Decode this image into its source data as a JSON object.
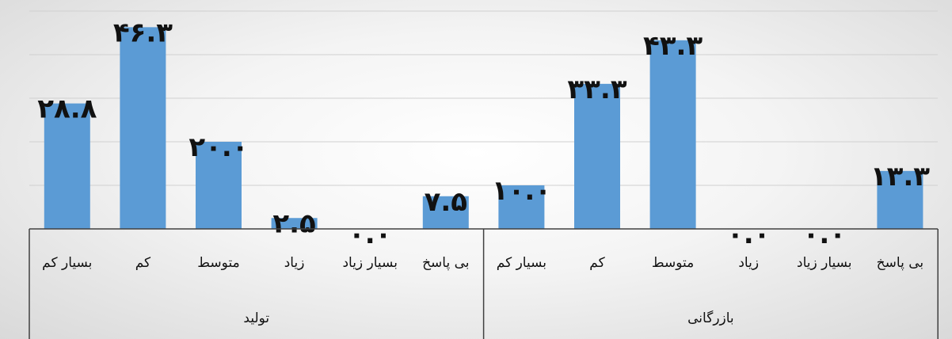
{
  "chart_data": {
    "type": "bar",
    "groups": [
      {
        "name": "تولید",
        "categories": [
          "بسیار کم",
          "کم",
          "متوسط",
          "زیاد",
          "بسیار زیاد",
          "بی پاسخ"
        ],
        "labels": [
          "۲۸.۸",
          "۴۶.۳",
          "۲۰.۰",
          "۲.۵",
          "۰.۰",
          "۷.۵"
        ],
        "values": [
          28.8,
          46.3,
          20.0,
          2.5,
          0.0,
          7.5
        ]
      },
      {
        "name": "بازرگانی",
        "categories": [
          "بسیار کم",
          "کم",
          "متوسط",
          "زیاد",
          "بسیار زیاد",
          "بی پاسخ"
        ],
        "labels": [
          "۱۰.۰",
          "۳۳.۳",
          "۴۳.۳",
          "۰.۰",
          "۰.۰",
          "۱۳.۳"
        ],
        "values": [
          10.0,
          33.3,
          43.3,
          0.0,
          0.0,
          13.3
        ]
      }
    ],
    "ylim": [
      0,
      50
    ],
    "grid": true,
    "bar_color": "#5b9bd5"
  }
}
